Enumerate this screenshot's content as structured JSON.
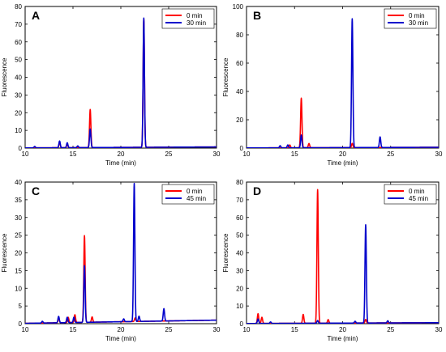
{
  "chart_data": [
    {
      "type": "line",
      "panel": "A",
      "xlabel": "Time (min)",
      "ylabel": "Fluorescence",
      "xlim": [
        10,
        30
      ],
      "ylim": [
        0,
        80
      ],
      "xticks": [
        10,
        15,
        20,
        25,
        30
      ],
      "yticks": [
        0,
        10,
        20,
        30,
        40,
        50,
        60,
        70,
        80
      ],
      "legend_position": "top-right",
      "baseline_drift": 0.6,
      "series": [
        {
          "name": "0 min",
          "color": "#ff0000",
          "peaks": [
            [
              13.6,
              3.0
            ],
            [
              14.4,
              2.0
            ],
            [
              16.8,
              21.5
            ],
            [
              22.4,
              72.5
            ]
          ]
        },
        {
          "name": "30 min",
          "color": "#0000cc",
          "peaks": [
            [
              11.0,
              0.8
            ],
            [
              13.6,
              3.8
            ],
            [
              14.4,
              2.8
            ],
            [
              15.5,
              1.0
            ],
            [
              16.8,
              10.5
            ],
            [
              22.4,
              73.0
            ]
          ]
        }
      ]
    },
    {
      "type": "line",
      "panel": "B",
      "xlabel": "Time (min)",
      "ylabel": "Fluorescence",
      "xlim": [
        10,
        30
      ],
      "ylim": [
        0,
        100
      ],
      "xticks": [
        10,
        15,
        20,
        25,
        30
      ],
      "yticks": [
        0,
        20,
        40,
        60,
        80,
        100
      ],
      "legend_position": "top-right",
      "baseline_drift": 0.5,
      "series": [
        {
          "name": "0 min",
          "color": "#ff0000",
          "peaks": [
            [
              14.5,
              2.0
            ],
            [
              15.7,
              35.0
            ],
            [
              16.5,
              3.0
            ],
            [
              21.0,
              3.0
            ]
          ]
        },
        {
          "name": "30 min",
          "color": "#0000cc",
          "peaks": [
            [
              13.5,
              1.5
            ],
            [
              14.3,
              2.0
            ],
            [
              15.7,
              9.0
            ],
            [
              21.0,
              91.0
            ],
            [
              23.9,
              7.5
            ]
          ]
        }
      ]
    },
    {
      "type": "line",
      "panel": "C",
      "xlabel": "Time (min)",
      "ylabel": "Fluorescence",
      "xlim": [
        10,
        30
      ],
      "ylim": [
        0,
        40
      ],
      "xticks": [
        10,
        15,
        20,
        25,
        30
      ],
      "yticks": [
        0,
        5,
        10,
        15,
        20,
        25,
        30,
        35,
        40
      ],
      "legend_position": "top-right",
      "baseline_drift": 1.0,
      "series": [
        {
          "name": "0 min",
          "color": "#ff0000",
          "peaks": [
            [
              13.5,
              1.2
            ],
            [
              14.5,
              1.5
            ],
            [
              15.2,
              2.2
            ],
            [
              16.2,
              24.5
            ],
            [
              17.0,
              1.5
            ],
            [
              21.5,
              1.0
            ]
          ]
        },
        {
          "name": "45 min",
          "color": "#0000cc",
          "peaks": [
            [
              11.8,
              0.5
            ],
            [
              13.5,
              1.8
            ],
            [
              14.4,
              1.5
            ],
            [
              15.1,
              1.5
            ],
            [
              16.2,
              16.0
            ],
            [
              20.3,
              0.8
            ],
            [
              21.4,
              39.0
            ],
            [
              21.9,
              1.5
            ],
            [
              24.5,
              3.5
            ]
          ]
        }
      ]
    },
    {
      "type": "line",
      "panel": "D",
      "xlabel": "Time (min)",
      "ylabel": "Fluorescence",
      "xlim": [
        10,
        30
      ],
      "ylim": [
        0,
        80
      ],
      "xticks": [
        10,
        15,
        20,
        25,
        30
      ],
      "yticks": [
        0,
        10,
        20,
        30,
        40,
        50,
        60,
        70,
        80
      ],
      "legend_position": "top-right",
      "baseline_drift": 0.5,
      "series": [
        {
          "name": "0 min",
          "color": "#ff0000",
          "peaks": [
            [
              11.2,
              5.5
            ],
            [
              11.6,
              3.5
            ],
            [
              15.9,
              5.0
            ],
            [
              17.4,
              75.5
            ],
            [
              18.5,
              2.0
            ],
            [
              22.4,
              2.0
            ]
          ]
        },
        {
          "name": "45 min",
          "color": "#0000cc",
          "peaks": [
            [
              11.2,
              2.5
            ],
            [
              12.5,
              0.8
            ],
            [
              17.4,
              1.5
            ],
            [
              21.3,
              1.0
            ],
            [
              22.4,
              55.5
            ],
            [
              24.7,
              1.2
            ]
          ]
        }
      ]
    }
  ]
}
